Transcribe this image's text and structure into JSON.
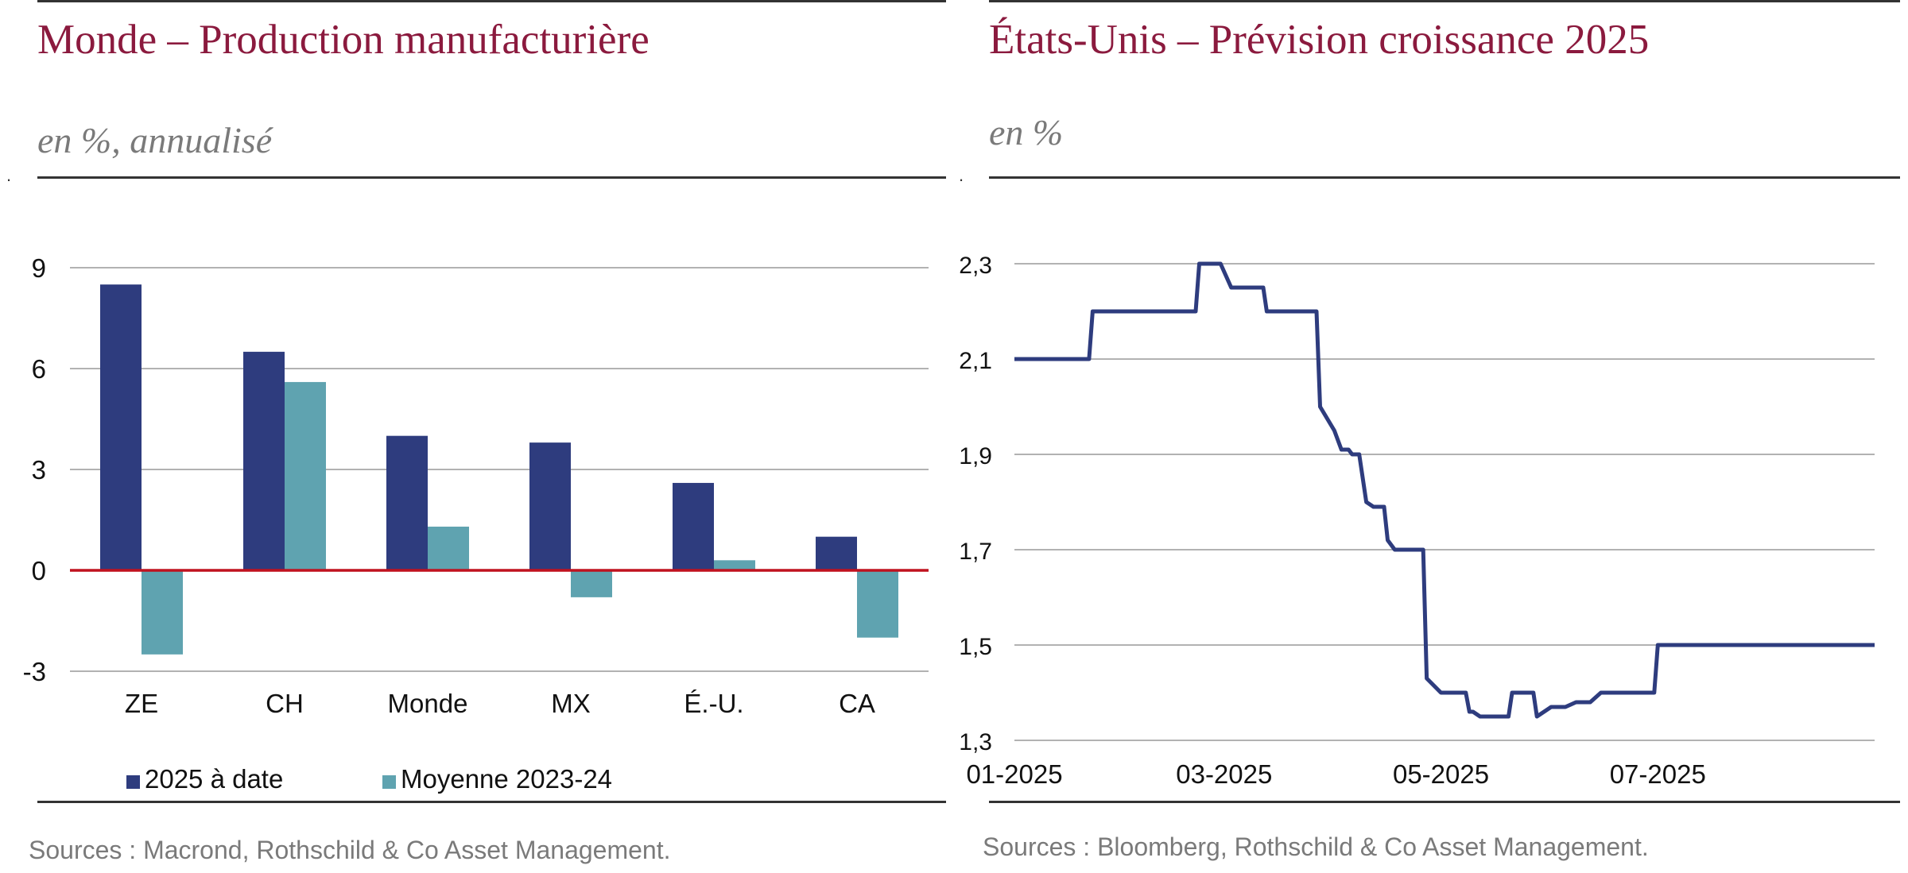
{
  "left_panel": {
    "title": "Monde – Production manufacturière",
    "subtitle": "en %, annualisé",
    "marker": ".",
    "source": "Sources : Macrond, Rothschild & Co Asset Management."
  },
  "right_panel": {
    "title": "États-Unis – Prévision croissance 2025",
    "subtitle": "en %",
    "marker": ".",
    "source": "Sources : Bloomberg, Rothschild & Co Asset Management."
  },
  "colors": {
    "title": "#8b1a3e",
    "series_dark": "#2e3c7e",
    "series_teal": "#5fa3b0",
    "zero_line": "#c0121f",
    "grid": "#999999"
  },
  "chart_data": [
    {
      "type": "bar",
      "categories": [
        "ZE",
        "CH",
        "Monde",
        "MX",
        "É.-U.",
        "CA"
      ],
      "series": [
        {
          "name": "2025 à date",
          "values": [
            8.5,
            6.5,
            4.0,
            3.8,
            2.6,
            1.0
          ]
        },
        {
          "name": "Moyenne 2023-24",
          "values": [
            -2.5,
            5.6,
            1.3,
            -0.8,
            0.3,
            -2.0
          ]
        }
      ],
      "yticks": [
        "9",
        "6",
        "3",
        "0",
        "-3"
      ],
      "ytick_values": [
        9,
        6,
        3,
        0,
        -3
      ],
      "ylim": [
        -3,
        9
      ],
      "grid": true,
      "legend_position": "bottom"
    },
    {
      "type": "line",
      "x_start": "2025-01-01",
      "x_end": "2025-08-31",
      "xticks": [
        "01-2025",
        "03-2025",
        "05-2025",
        "07-2025"
      ],
      "xtick_dates": [
        "2025-01-01",
        "2025-03-01",
        "2025-05-01",
        "2025-07-01"
      ],
      "yticks": [
        "2,3",
        "2,1",
        "1,9",
        "1,7",
        "1,5",
        "1,3"
      ],
      "ytick_values": [
        2.3,
        2.1,
        1.9,
        1.7,
        1.5,
        1.3
      ],
      "ylim": [
        1.3,
        2.3
      ],
      "grid": true,
      "series": [
        {
          "points": [
            [
              "2025-01-01",
              2.1
            ],
            [
              "2025-01-22",
              2.1
            ],
            [
              "2025-01-23",
              2.2
            ],
            [
              "2025-02-21",
              2.2
            ],
            [
              "2025-02-22",
              2.3
            ],
            [
              "2025-02-28",
              2.3
            ],
            [
              "2025-03-03",
              2.25
            ],
            [
              "2025-03-12",
              2.25
            ],
            [
              "2025-03-13",
              2.2
            ],
            [
              "2025-03-27",
              2.2
            ],
            [
              "2025-03-28",
              2.0
            ],
            [
              "2025-04-01",
              1.95
            ],
            [
              "2025-04-03",
              1.91
            ],
            [
              "2025-04-05",
              1.91
            ],
            [
              "2025-04-06",
              1.9
            ],
            [
              "2025-04-08",
              1.9
            ],
            [
              "2025-04-10",
              1.8
            ],
            [
              "2025-04-12",
              1.79
            ],
            [
              "2025-04-15",
              1.79
            ],
            [
              "2025-04-16",
              1.72
            ],
            [
              "2025-04-18",
              1.7
            ],
            [
              "2025-04-26",
              1.7
            ],
            [
              "2025-04-27",
              1.43
            ],
            [
              "2025-05-01",
              1.4
            ],
            [
              "2025-05-08",
              1.4
            ],
            [
              "2025-05-09",
              1.36
            ],
            [
              "2025-05-10",
              1.36
            ],
            [
              "2025-05-12",
              1.35
            ],
            [
              "2025-05-20",
              1.35
            ],
            [
              "2025-05-21",
              1.4
            ],
            [
              "2025-05-27",
              1.4
            ],
            [
              "2025-05-28",
              1.35
            ],
            [
              "2025-06-01",
              1.37
            ],
            [
              "2025-06-05",
              1.37
            ],
            [
              "2025-06-08",
              1.38
            ],
            [
              "2025-06-12",
              1.38
            ],
            [
              "2025-06-15",
              1.4
            ],
            [
              "2025-06-30",
              1.4
            ],
            [
              "2025-07-01",
              1.5
            ],
            [
              "2025-08-31",
              1.5
            ]
          ]
        }
      ]
    }
  ]
}
